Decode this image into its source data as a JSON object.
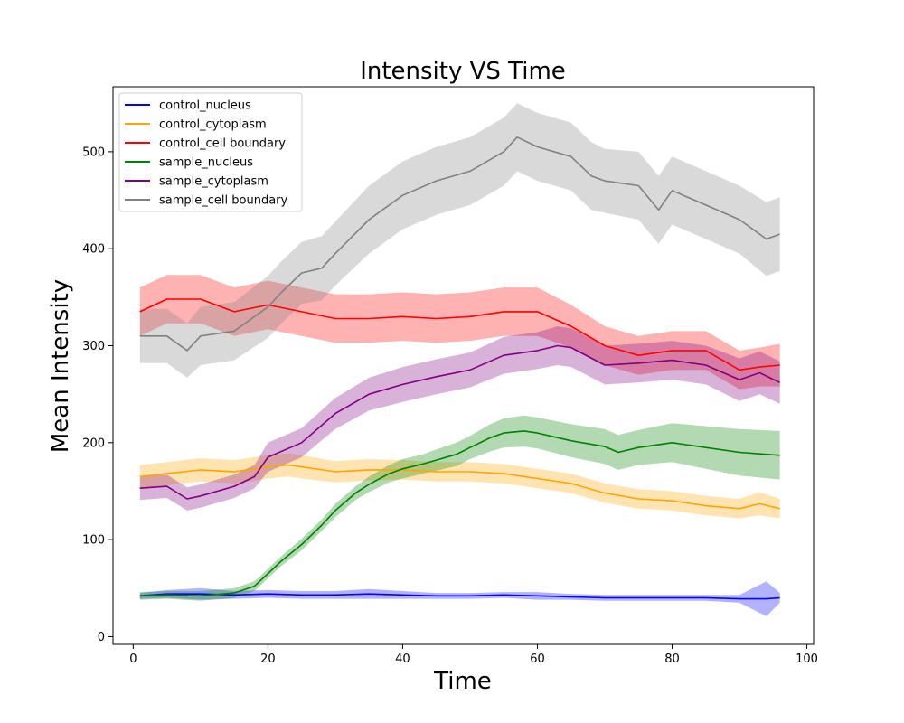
{
  "chart_data": {
    "type": "line",
    "title": "Intensity VS Time",
    "xlabel": "Time",
    "ylabel": "Mean Intensity",
    "xlim": [
      -3,
      101
    ],
    "ylim": [
      -8,
      567
    ],
    "xticks": [
      0,
      20,
      40,
      60,
      80,
      100
    ],
    "yticks": [
      0,
      100,
      200,
      300,
      400,
      500
    ],
    "grid": false,
    "legend_position": "top-left",
    "series": [
      {
        "name": "control_nucleus",
        "color": "#0000ff",
        "x": [
          1,
          5,
          10,
          15,
          20,
          25,
          30,
          35,
          40,
          45,
          50,
          55,
          60,
          65,
          70,
          75,
          80,
          85,
          90,
          94,
          96
        ],
        "y": [
          42,
          44,
          44,
          43,
          44,
          43,
          43,
          44,
          43,
          42,
          42,
          43,
          42,
          41,
          40,
          40,
          40,
          40,
          39,
          39,
          40
        ],
        "band": [
          3,
          4,
          6,
          4,
          4,
          4,
          4,
          5,
          4,
          3,
          3,
          3,
          4,
          3,
          3,
          3,
          3,
          3,
          4,
          18,
          5
        ]
      },
      {
        "name": "control_cytoplasm",
        "color": "#ffa500",
        "x": [
          1,
          5,
          10,
          15,
          20,
          23,
          25,
          30,
          35,
          40,
          45,
          50,
          55,
          60,
          65,
          70,
          75,
          80,
          85,
          90,
          93,
          96
        ],
        "y": [
          165,
          168,
          172,
          170,
          175,
          177,
          175,
          170,
          172,
          172,
          170,
          170,
          168,
          163,
          158,
          148,
          142,
          140,
          135,
          132,
          137,
          132
        ],
        "band": [
          12,
          12,
          12,
          12,
          12,
          12,
          12,
          11,
          11,
          10,
          10,
          10,
          10,
          10,
          10,
          10,
          10,
          10,
          10,
          10,
          12,
          10
        ]
      },
      {
        "name": "control_cell boundary",
        "color": "#ff0000",
        "x": [
          1,
          5,
          10,
          15,
          20,
          25,
          30,
          35,
          40,
          45,
          50,
          55,
          60,
          65,
          70,
          75,
          80,
          85,
          90,
          93,
          96
        ],
        "y": [
          335,
          348,
          348,
          335,
          342,
          335,
          328,
          328,
          330,
          328,
          330,
          335,
          335,
          320,
          300,
          290,
          295,
          295,
          275,
          278,
          280
        ],
        "band": [
          25,
          25,
          25,
          25,
          25,
          25,
          25,
          25,
          25,
          25,
          25,
          25,
          25,
          22,
          20,
          20,
          20,
          20,
          20,
          20,
          22
        ]
      },
      {
        "name": "sample_nucleus",
        "color": "#008000",
        "x": [
          1,
          5,
          10,
          15,
          18,
          20,
          22,
          25,
          28,
          30,
          33,
          35,
          38,
          40,
          43,
          45,
          48,
          50,
          53,
          55,
          58,
          60,
          65,
          70,
          72,
          75,
          80,
          85,
          90,
          96
        ],
        "y": [
          42,
          43,
          42,
          45,
          52,
          65,
          78,
          95,
          115,
          130,
          148,
          157,
          168,
          173,
          178,
          182,
          188,
          195,
          205,
          210,
          212,
          210,
          202,
          196,
          190,
          195,
          200,
          195,
          190,
          187
        ],
        "band": [
          4,
          4,
          5,
          5,
          5,
          5,
          5,
          6,
          6,
          7,
          7,
          8,
          9,
          10,
          10,
          11,
          12,
          12,
          14,
          15,
          16,
          16,
          17,
          18,
          18,
          18,
          20,
          22,
          24,
          25
        ]
      },
      {
        "name": "sample_cytoplasm",
        "color": "#800080",
        "x": [
          1,
          5,
          8,
          10,
          15,
          18,
          20,
          25,
          30,
          35,
          40,
          45,
          50,
          55,
          60,
          63,
          65,
          70,
          75,
          80,
          85,
          90,
          93,
          96
        ],
        "y": [
          153,
          155,
          142,
          145,
          155,
          165,
          185,
          200,
          230,
          250,
          260,
          268,
          275,
          290,
          295,
          300,
          298,
          280,
          282,
          285,
          280,
          265,
          272,
          262
        ],
        "band": [
          12,
          12,
          12,
          12,
          12,
          12,
          15,
          15,
          16,
          17,
          18,
          18,
          18,
          19,
          19,
          20,
          20,
          20,
          20,
          20,
          20,
          22,
          22,
          22
        ]
      },
      {
        "name": "sample_cell boundary",
        "color": "#808080",
        "x": [
          1,
          5,
          8,
          10,
          15,
          20,
          22,
          25,
          28,
          30,
          35,
          40,
          45,
          50,
          55,
          57,
          60,
          65,
          68,
          70,
          75,
          78,
          80,
          85,
          90,
          94,
          96
        ],
        "y": [
          310,
          310,
          295,
          310,
          315,
          340,
          355,
          375,
          380,
          395,
          430,
          455,
          470,
          480,
          500,
          515,
          505,
          495,
          475,
          470,
          465,
          440,
          460,
          445,
          430,
          410,
          415
        ],
        "band": [
          28,
          28,
          28,
          30,
          30,
          32,
          32,
          32,
          33,
          33,
          35,
          35,
          35,
          35,
          35,
          35,
          35,
          35,
          35,
          33,
          35,
          35,
          35,
          35,
          35,
          38,
          38
        ]
      }
    ]
  }
}
